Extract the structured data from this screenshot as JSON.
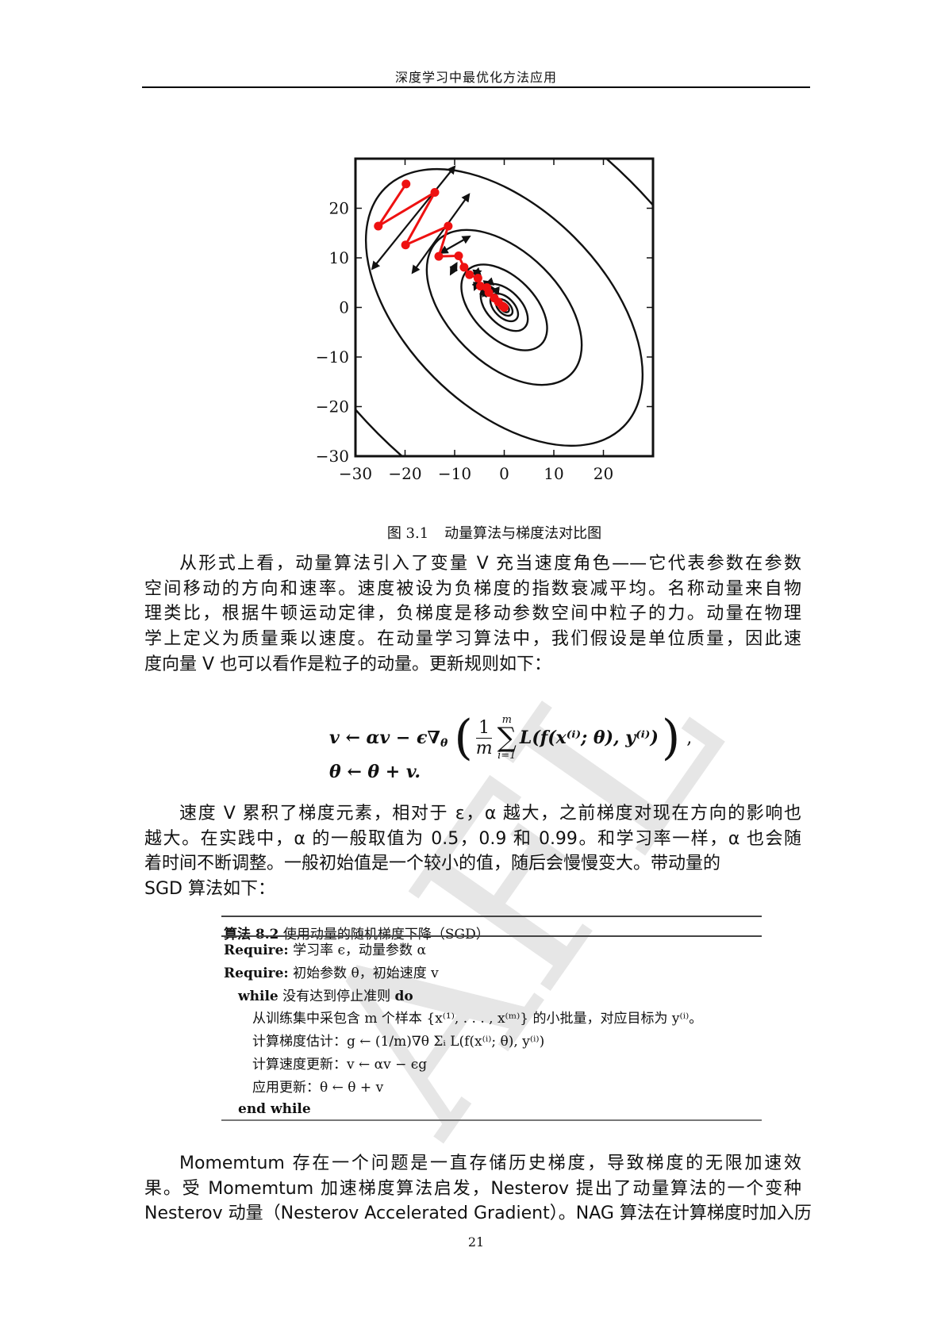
{
  "header": {
    "title": "深度学习中最优化方法应用"
  },
  "figure": {
    "caption_number": "图 3.1",
    "caption_text": "动量算法与梯度法对比图"
  },
  "chart_data": {
    "type": "contour",
    "title": "",
    "xlabel": "",
    "ylabel": "",
    "xlim": [
      -30,
      30
    ],
    "ylim": [
      -30,
      30
    ],
    "xticks": [
      "−30",
      "−20",
      "−10",
      "0",
      "10",
      "20"
    ],
    "xtick_values": [
      -30,
      -20,
      -10,
      0,
      10,
      20
    ],
    "yticks": [
      "20",
      "10",
      "0",
      "−10",
      "−20",
      "−30"
    ],
    "ytick_values": [
      20,
      10,
      0,
      -10,
      -20,
      -30
    ],
    "grid": false,
    "contour_center": [
      0,
      0
    ],
    "contour_orientation_deg": -45,
    "contour_axis_ratio": 1.7,
    "contour_relative_sizes": [
      1.8,
      1.0,
      0.56,
      0.31,
      0.17,
      0.1,
      0.06,
      0.035
    ],
    "path_color": "#ee1111",
    "path": [
      [
        -19.8,
        24.9
      ],
      [
        -25.4,
        16.4
      ],
      [
        -14.0,
        23.2
      ],
      [
        -19.9,
        12.6
      ],
      [
        -11.3,
        16.4
      ],
      [
        -13.2,
        10.3
      ],
      [
        -9.2,
        10.4
      ],
      [
        -8.1,
        8.1
      ],
      [
        -7.0,
        6.6
      ],
      [
        -5.3,
        5.9
      ],
      [
        -4.8,
        4.3
      ],
      [
        -3.5,
        4.0
      ],
      [
        -3.1,
        3.0
      ],
      [
        -2.0,
        1.9
      ],
      [
        -1.2,
        1.1
      ],
      [
        -0.4,
        0.3
      ],
      [
        0,
        0
      ]
    ],
    "arrows": [
      [
        [
          -26.6,
          7.8
        ],
        [
          -10.0,
          28.4
        ]
      ],
      [
        [
          -18.5,
          7.0
        ],
        [
          -7.1,
          22.8
        ]
      ],
      [
        [
          -12.8,
          11.0
        ],
        [
          -7.0,
          14.3
        ]
      ],
      [
        [
          -10.8,
          6.7
        ],
        [
          -9.6,
          8.9
        ]
      ],
      [
        [
          -6.2,
          6.8
        ],
        [
          -4.8,
          7.3
        ]
      ],
      [
        [
          -6.0,
          3.6
        ],
        [
          -5.2,
          5.5
        ]
      ],
      [
        [
          -3.6,
          4.8
        ],
        [
          -2.7,
          5.1
        ]
      ],
      [
        [
          -4.3,
          2.3
        ],
        [
          -3.7,
          3.6
        ]
      ],
      [
        [
          -2.4,
          3.5
        ],
        [
          -1.4,
          3.4
        ]
      ]
    ]
  },
  "paragraph1": {
    "lines": [
      "从形式上看，动量算法引入了变量 V 充当速度角色——它代表参数在参数",
      "空间移动的方向和速率。速度被设为负梯度的指数衰减平均。名称动量来自物",
      "理类比，根据牛顿运动定律，负梯度是移动参数空间中粒子的力。动量在物理",
      "学上定义为质量乘以速度。在动量学习算法中，我们假设是单位质量，因此速",
      "度向量 V 也可以看作是粒子的动量。更新规则如下："
    ]
  },
  "equations": {
    "eq1_lhs": "v ← αv − ϵ∇",
    "eq1_sub": "θ",
    "eq1_frac_num": "1",
    "eq1_frac_den": "m",
    "eq1_sum_top": "m",
    "eq1_sum_bottom": "i=1",
    "eq1_body": "L(f(x⁽ⁱ⁾; θ), y⁽ⁱ⁾)",
    "eq1_comma": ",",
    "eq2": "θ ← θ + v."
  },
  "paragraph2": {
    "lines": [
      "速度 V 累积了梯度元素，相对于 ε，α 越大，之前梯度对现在方向的影响也",
      "越大。在实践中，α 的一般取值为 0.5，0.9 和 0.99。和学习率一样，α 也会随",
      "着时间不断调整。一般初始值是一个较小的值，随后会慢慢变大。带动量的",
      "SGD 算法如下："
    ]
  },
  "algorithm": {
    "label": "算法 8.2",
    "title": "使用动量的随机梯度下降（SGD）",
    "rows": [
      {
        "kw": "Require:",
        "text": "学习率 ϵ，动量参数 α"
      },
      {
        "kw": "Require:",
        "text": "初始参数 θ，初始速度 v"
      },
      {
        "kw": "while",
        "text": "没有达到停止准则",
        "kw2": "do"
      },
      {
        "text": "从训练集中采包含 m 个样本 {x⁽¹⁾, . . . , x⁽ᵐ⁾} 的小批量，对应目标为 y⁽ⁱ⁾。"
      },
      {
        "text": "计算梯度估计：g ← (1/m)∇θ Σᵢ L(f(x⁽ⁱ⁾; θ), y⁽ⁱ⁾)"
      },
      {
        "text": "计算速度更新：v ← αv − ϵg"
      },
      {
        "text": "应用更新：θ ← θ + v"
      },
      {
        "kw": "end while"
      }
    ]
  },
  "paragraph3": {
    "lines": [
      "Momemtum 存在一个问题是一直存储历史梯度，导致梯度的无限加速效",
      "果。受 Momemtum 加速梯度算法启发，Nesterov 提出了动量算法的一个变种",
      "Nesterov 动量（Nesterov Accelerated Gradient）。NAG 算法在计算梯度时加入历"
    ]
  },
  "watermark": {
    "text": "AFL",
    "color": "#e4e4e4"
  },
  "page_number": "21"
}
